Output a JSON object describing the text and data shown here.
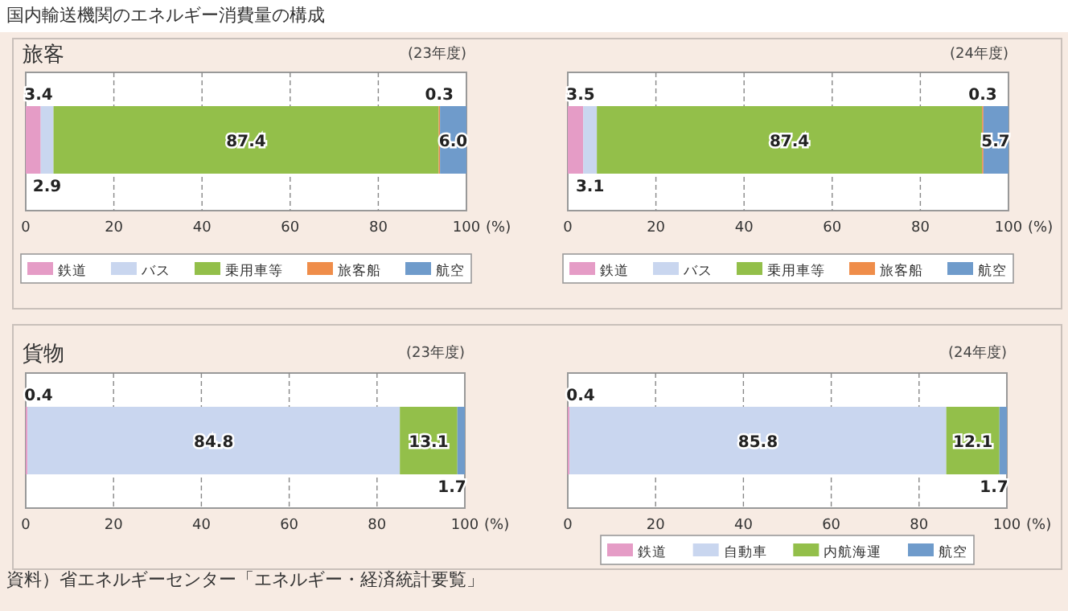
{
  "chart_data": [
    {
      "type": "bar",
      "orientation": "horizontal",
      "stacked": true,
      "title": "旅客",
      "subtitle": "(23年度)",
      "annotations": [
        "国内輸送機関のエネルギー消費量の構成"
      ],
      "categories": [
        null
      ],
      "xlim": [
        0,
        100
      ],
      "xticks": [
        0,
        20,
        40,
        60,
        80,
        100
      ],
      "xlabel": "(%)",
      "grid": "x",
      "legend": "bottom",
      "series": [
        {
          "name": "鉄道",
          "color": "#e59cc6",
          "values": [
            3.4
          ],
          "value_labels": [
            "3.4"
          ]
        },
        {
          "name": "バス",
          "color": "#c9d6ef",
          "values": [
            2.9
          ],
          "value_labels": [
            "2.9"
          ]
        },
        {
          "name": "乗用車等",
          "color": "#93bf4a",
          "values": [
            87.4
          ],
          "value_labels": [
            "87.4"
          ]
        },
        {
          "name": "旅客船",
          "color": "#ef8d4a",
          "values": [
            0.3
          ],
          "value_labels": [
            "0.3"
          ]
        },
        {
          "name": "航空",
          "color": "#6f9bcb",
          "values": [
            6.0
          ],
          "value_labels": [
            "6.0"
          ]
        }
      ]
    },
    {
      "type": "bar",
      "orientation": "horizontal",
      "stacked": true,
      "subtitle": "(24年度)",
      "categories": [
        null
      ],
      "xlim": [
        0,
        100
      ],
      "xticks": [
        0,
        20,
        40,
        60,
        80,
        100
      ],
      "xlabel": "(%)",
      "grid": "x",
      "legend": "bottom",
      "series": [
        {
          "name": "鉄道",
          "color": "#e59cc6",
          "values": [
            3.5
          ],
          "value_labels": [
            "3.5"
          ]
        },
        {
          "name": "バス",
          "color": "#c9d6ef",
          "values": [
            3.1
          ],
          "value_labels": [
            "3.1"
          ]
        },
        {
          "name": "乗用車等",
          "color": "#93bf4a",
          "values": [
            87.4
          ],
          "value_labels": [
            "87.4"
          ]
        },
        {
          "name": "旅客船",
          "color": "#ef8d4a",
          "values": [
            0.3
          ],
          "value_labels": [
            "0.3"
          ]
        },
        {
          "name": "航空",
          "color": "#6f9bcb",
          "values": [
            5.7
          ],
          "value_labels": [
            "5.7"
          ]
        }
      ]
    },
    {
      "type": "bar",
      "orientation": "horizontal",
      "stacked": true,
      "title": "貨物",
      "subtitle": "(23年度)",
      "annotations": [
        "資料）省エネルギーセンター「エネルギー・経済統計要覧」"
      ],
      "categories": [
        null
      ],
      "xlim": [
        0,
        100
      ],
      "xticks": [
        0,
        20,
        40,
        60,
        80,
        100
      ],
      "xlabel": "(%)",
      "grid": "x",
      "series": [
        {
          "color": "#e59cc6",
          "values": [
            0.4
          ],
          "value_labels": [
            "0.4"
          ]
        },
        {
          "color": "#c9d6ef",
          "values": [
            84.8
          ],
          "value_labels": [
            "84.8"
          ]
        },
        {
          "color": "#93bf4a",
          "values": [
            13.1
          ],
          "value_labels": [
            "13.1"
          ]
        },
        {
          "color": "#6f9bcb",
          "values": [
            1.7
          ],
          "value_labels": [
            "1.7"
          ]
        }
      ]
    },
    {
      "type": "bar",
      "orientation": "horizontal",
      "stacked": true,
      "subtitle": "(24年度)",
      "categories": [
        null
      ],
      "xlim": [
        0,
        100
      ],
      "xticks": [
        0,
        20,
        40,
        60,
        80,
        100
      ],
      "xlabel": "(%)",
      "grid": "x",
      "legend": "bottom",
      "series": [
        {
          "name": "鉄道",
          "color": "#e59cc6",
          "values": [
            0.4
          ],
          "value_labels": [
            "0.4"
          ]
        },
        {
          "name": "自動車",
          "color": "#c9d6ef",
          "values": [
            85.8
          ],
          "value_labels": [
            "85.8"
          ]
        },
        {
          "name": "内航海運",
          "color": "#93bf4a",
          "values": [
            12.1
          ],
          "value_labels": [
            "12.1"
          ]
        },
        {
          "name": "航空",
          "color": "#6f9bcb",
          "values": [
            1.7
          ],
          "value_labels": [
            "1.7"
          ]
        }
      ]
    }
  ]
}
